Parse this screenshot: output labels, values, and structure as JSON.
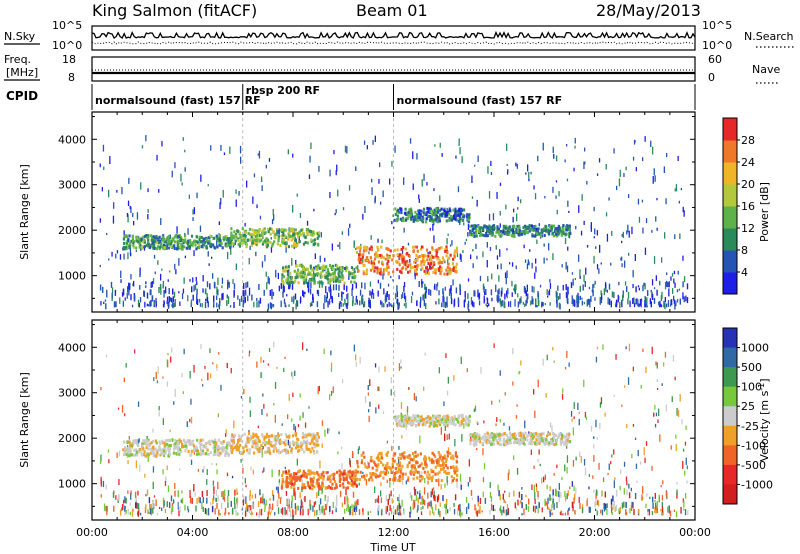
{
  "header": {
    "title": "King Salmon (fitACF)",
    "beam": "Beam 01",
    "date": "28/May/2013"
  },
  "noise_panel": {
    "left_label": "N.Sky",
    "right_label": "N.Search",
    "left_ticks": [
      "10^5",
      "10^0"
    ],
    "right_ticks": [
      "10^5",
      "10^0"
    ]
  },
  "freq_panel": {
    "left_label_1": "Freq.",
    "left_label_2": "[MHz]",
    "right_label": "Nave",
    "left_ticks": [
      "18",
      "8"
    ],
    "right_ticks": [
      "60",
      "0"
    ]
  },
  "cpid": {
    "label": "CPID",
    "segments": [
      {
        "text": "normalsound (fast) 157 RF",
        "start_h": 0,
        "end_h": 6
      },
      {
        "text": "rbsp 200 RF",
        "start_h": 6,
        "end_h": 12
      },
      {
        "text": "normalsound (fast) 157 RF",
        "start_h": 12,
        "end_h": 24
      }
    ]
  },
  "axes": {
    "y_label": "Slant Range [km]",
    "y_ticks": [
      "1000",
      "2000",
      "3000",
      "4000"
    ],
    "x_label": "Time UT",
    "x_ticks": [
      "00:00",
      "04:00",
      "08:00",
      "12:00",
      "16:00",
      "20:00",
      "00:00"
    ]
  },
  "power_colorbar": {
    "title": "Power [dB]",
    "ticks": [
      "4",
      "8",
      "12",
      "16",
      "20",
      "24",
      "28"
    ],
    "colors": [
      "#1e1ee6",
      "#2455b4",
      "#2b8a5a",
      "#5db24a",
      "#b4c83c",
      "#f0b428",
      "#f07828",
      "#e62828"
    ]
  },
  "velocity_colorbar": {
    "title": "Velocity [m s",
    "title_sup": "-1",
    "title_close": "]",
    "ticks": [
      "1000",
      "500",
      "100",
      "25",
      "-25",
      "-100",
      "-500",
      "-1000"
    ],
    "colors": [
      "#2832b4",
      "#2f6aa6",
      "#3c9a50",
      "#78c83c",
      "#cccccc",
      "#f0a028",
      "#f06428",
      "#e62828",
      "#d21e1e"
    ]
  },
  "chart_data": {
    "type": "heatmap",
    "title": "King Salmon (fitACF)",
    "xlabel": "Time UT",
    "ylabel": "Slant Range [km]",
    "xlim": [
      0,
      24
    ],
    "ylim": [
      200,
      4600
    ],
    "x_unit": "hours UT",
    "panels": [
      {
        "name": "Power [dB]",
        "clim": [
          0,
          30
        ],
        "features": [
          {
            "t_start": 1.2,
            "t_end": 5.5,
            "r_center": 1700,
            "r_halfwidth": 150,
            "value": 10
          },
          {
            "t_start": 5.5,
            "t_end": 9.0,
            "r_center": 1800,
            "r_halfwidth": 200,
            "value": 14
          },
          {
            "t_start": 7.5,
            "t_end": 10.5,
            "r_center": 1000,
            "r_halfwidth": 200,
            "value": 13
          },
          {
            "t_start": 10.5,
            "t_end": 14.5,
            "r_center": 1300,
            "r_halfwidth": 300,
            "value": 24
          },
          {
            "t_start": 12.0,
            "t_end": 15.0,
            "r_center": 2300,
            "r_halfwidth": 150,
            "value": 8
          },
          {
            "t_start": 15.0,
            "t_end": 19.0,
            "r_center": 1950,
            "r_halfwidth": 120,
            "value": 9
          }
        ]
      },
      {
        "name": "Velocity [m s-1]",
        "clim": [
          -1000,
          1000
        ],
        "features": [
          {
            "t_start": 1.2,
            "t_end": 5.5,
            "r_center": 1750,
            "r_halfwidth": 180,
            "value": 0
          },
          {
            "t_start": 5.5,
            "t_end": 9.0,
            "r_center": 1850,
            "r_halfwidth": 220,
            "value": -150
          },
          {
            "t_start": 7.5,
            "t_end": 10.5,
            "r_center": 1050,
            "r_halfwidth": 200,
            "value": -400
          },
          {
            "t_start": 10.5,
            "t_end": 14.5,
            "r_center": 1350,
            "r_halfwidth": 320,
            "value": -300
          },
          {
            "t_start": 12.0,
            "t_end": 15.0,
            "r_center": 2350,
            "r_halfwidth": 120,
            "value": 0
          },
          {
            "t_start": 15.0,
            "t_end": 19.0,
            "r_center": 1950,
            "r_halfwidth": 130,
            "value": 0
          }
        ]
      }
    ]
  }
}
